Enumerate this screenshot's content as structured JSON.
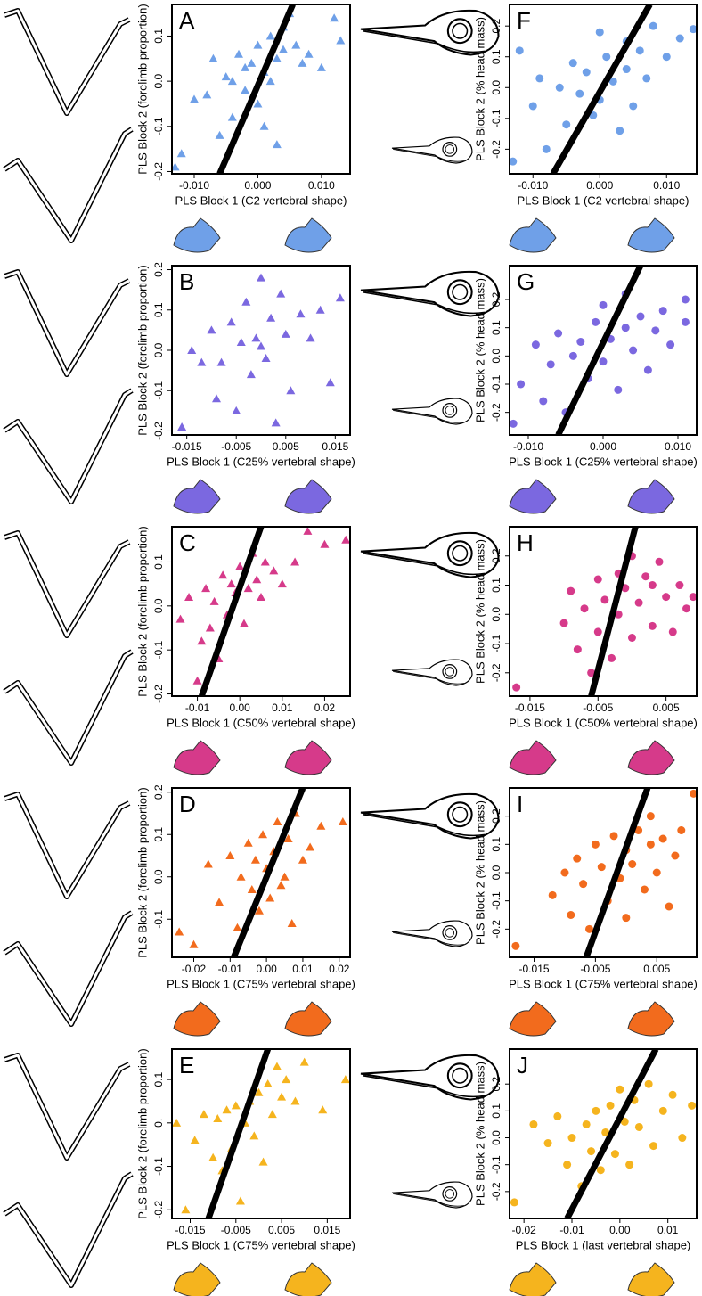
{
  "chart_data": [
    {
      "type": "scatter",
      "panel": "A",
      "marker": "triangle",
      "color": "#6fa0e8",
      "xlabel": "PLS Block 1 (C2 vertebral shape)",
      "ylabel": "PLS Block 2 (forelimb proportion)",
      "xlim": [
        -0.0135,
        0.0145
      ],
      "ylim": [
        -0.205,
        0.17
      ],
      "xticks": [
        {
          "value": -0.01,
          "label": "-0.010"
        },
        {
          "value": 0,
          "label": "0.000"
        },
        {
          "value": 0.01,
          "label": "0.010"
        }
      ],
      "yticks": [
        -0.2,
        -0.1,
        {
          "value": 0,
          "label": "0.0"
        },
        0.1
      ],
      "fit_line": {
        "x": [
          -0.006,
          0.0055
        ],
        "y": [
          -0.205,
          0.17
        ]
      },
      "x": [
        -0.012,
        -0.01,
        -0.008,
        -0.007,
        -0.006,
        -0.005,
        -0.004,
        -0.004,
        -0.003,
        -0.002,
        -0.002,
        -0.001,
        0.0,
        0.0,
        0.001,
        0.001,
        0.002,
        0.002,
        0.003,
        0.003,
        0.004,
        0.004,
        0.005,
        0.006,
        0.007,
        0.008,
        0.01,
        0.012,
        0.013,
        -0.013
      ],
      "y": [
        -0.16,
        -0.04,
        -0.03,
        0.05,
        -0.12,
        0.01,
        0.0,
        -0.08,
        0.06,
        -0.02,
        0.03,
        0.04,
        -0.05,
        0.08,
        0.02,
        -0.1,
        0.1,
        0.0,
        0.05,
        -0.14,
        0.12,
        0.07,
        0.15,
        0.08,
        0.04,
        0.06,
        0.03,
        0.14,
        0.09,
        -0.19
      ]
    },
    {
      "type": "scatter",
      "panel": "B",
      "marker": "triangle",
      "color": "#7b68e0",
      "xlabel": "PLS Block 1 (C25% vertebral shape)",
      "ylabel": "PLS Block 2 (forelimb proportion)",
      "xlim": [
        -0.018,
        0.018
      ],
      "ylim": [
        -0.21,
        0.21
      ],
      "xticks": [
        -0.015,
        -0.005,
        0.005,
        0.015
      ],
      "yticks": [
        -0.2,
        -0.1,
        {
          "value": 0,
          "label": "0.0"
        },
        0.1,
        0.2
      ],
      "x": [
        -0.016,
        -0.014,
        -0.012,
        -0.01,
        -0.009,
        -0.008,
        -0.006,
        -0.005,
        -0.004,
        -0.003,
        -0.002,
        -0.001,
        0.0,
        0.0,
        0.001,
        0.002,
        0.003,
        0.004,
        0.005,
        0.006,
        0.008,
        0.01,
        0.012,
        0.014,
        0.016
      ],
      "y": [
        -0.19,
        0.0,
        -0.03,
        0.05,
        -0.12,
        -0.03,
        0.07,
        -0.15,
        0.02,
        0.12,
        -0.06,
        0.03,
        0.01,
        0.18,
        -0.02,
        0.08,
        -0.18,
        0.14,
        0.04,
        -0.1,
        0.09,
        0.03,
        0.1,
        -0.08,
        0.13
      ]
    },
    {
      "type": "scatter",
      "panel": "C",
      "marker": "triangle",
      "color": "#d63a8a",
      "xlabel": "PLS Block 1 (C50% vertebral shape)",
      "ylabel": "PLS Block 2 (forelimb proportion)",
      "xlim": [
        -0.016,
        0.026
      ],
      "ylim": [
        -0.205,
        0.18
      ],
      "xticks": [
        -0.01,
        {
          "value": 0,
          "label": "0.00"
        },
        0.01,
        0.02
      ],
      "yticks": [
        -0.2,
        -0.1,
        {
          "value": 0,
          "label": "0.0"
        },
        0.1
      ],
      "fit_line": {
        "x": [
          -0.009,
          0.005
        ],
        "y": [
          -0.205,
          0.18
        ]
      },
      "x": [
        -0.014,
        -0.012,
        -0.01,
        -0.009,
        -0.008,
        -0.007,
        -0.006,
        -0.005,
        -0.004,
        -0.003,
        -0.002,
        -0.001,
        0.0,
        0.001,
        0.002,
        0.003,
        0.004,
        0.005,
        0.006,
        0.008,
        0.01,
        0.013,
        0.016,
        0.02,
        0.025
      ],
      "y": [
        -0.03,
        0.02,
        -0.17,
        -0.08,
        0.04,
        -0.05,
        0.01,
        -0.12,
        0.07,
        -0.02,
        0.05,
        0.03,
        0.09,
        -0.04,
        0.04,
        0.12,
        0.06,
        0.02,
        0.1,
        0.08,
        0.05,
        0.1,
        0.17,
        0.14,
        0.15
      ]
    },
    {
      "type": "scatter",
      "panel": "D",
      "marker": "triangle",
      "color": "#f26b1d",
      "xlabel": "PLS Block 1 (C75% vertebral shape)",
      "ylabel": "PLS Block 2 (forelimb proportion)",
      "xlim": [
        -0.026,
        0.023
      ],
      "ylim": [
        -0.19,
        0.21
      ],
      "xticks": [
        -0.02,
        -0.01,
        {
          "value": 0,
          "label": "0.00"
        },
        0.01,
        0.02
      ],
      "yticks": [
        -0.1,
        {
          "value": 0,
          "label": "0.0"
        },
        0.1,
        0.2
      ],
      "fit_line": {
        "x": [
          -0.009,
          0.01
        ],
        "y": [
          -0.19,
          0.21
        ]
      },
      "x": [
        -0.024,
        -0.02,
        -0.016,
        -0.013,
        -0.01,
        -0.008,
        -0.007,
        -0.005,
        -0.004,
        -0.003,
        -0.002,
        -0.001,
        0.0,
        0.001,
        0.002,
        0.003,
        0.004,
        0.005,
        0.006,
        0.007,
        0.008,
        0.01,
        0.012,
        0.015,
        0.021
      ],
      "y": [
        -0.13,
        -0.16,
        0.03,
        -0.06,
        0.05,
        -0.12,
        0.0,
        0.08,
        -0.03,
        0.04,
        -0.08,
        0.1,
        0.02,
        -0.05,
        0.06,
        0.13,
        -0.02,
        0.0,
        0.09,
        -0.11,
        0.15,
        0.04,
        0.07,
        0.12,
        0.13
      ]
    },
    {
      "type": "scatter",
      "panel": "E",
      "marker": "triangle",
      "color": "#f5b41e",
      "xlabel": "PLS Block 1 (C75% vertebral shape)",
      "ylabel": "PLS Block 2 (forelimb proportion)",
      "xlim": [
        -0.019,
        0.02
      ],
      "ylim": [
        -0.22,
        0.17
      ],
      "xticks": [
        -0.015,
        -0.005,
        0.005,
        0.015
      ],
      "yticks": [
        -0.2,
        -0.1,
        {
          "value": 0,
          "label": "0."
        },
        0.1
      ],
      "fit_line": {
        "x": [
          -0.011,
          0.002
        ],
        "y": [
          -0.22,
          0.17
        ]
      },
      "x": [
        -0.018,
        -0.016,
        -0.014,
        -0.012,
        -0.01,
        -0.009,
        -0.008,
        -0.007,
        -0.006,
        -0.005,
        -0.004,
        -0.003,
        -0.002,
        -0.001,
        0.0,
        0.001,
        0.002,
        0.003,
        0.004,
        0.005,
        0.006,
        0.008,
        0.01,
        0.014,
        0.019
      ],
      "y": [
        0.0,
        -0.2,
        -0.04,
        0.02,
        -0.08,
        0.01,
        -0.11,
        0.03,
        -0.06,
        0.04,
        -0.18,
        0.0,
        0.05,
        -0.03,
        0.07,
        -0.09,
        0.09,
        0.02,
        0.13,
        0.06,
        0.1,
        0.05,
        0.14,
        0.03,
        0.1
      ]
    },
    {
      "type": "scatter",
      "panel": "F",
      "marker": "circle",
      "color": "#6fa0e8",
      "xlabel": "PLS Block 1 (C2 vertebral shape)",
      "ylabel": "PLS Block 2 (% head mass)",
      "xlim": [
        -0.0135,
        0.0145
      ],
      "ylim": [
        -0.28,
        0.27
      ],
      "xticks": [
        {
          "value": -0.01,
          "label": "-0.010"
        },
        {
          "value": 0,
          "label": "0.000"
        },
        {
          "value": 0.01,
          "label": "0.010"
        }
      ],
      "yticks": [
        -0.2,
        -0.1,
        {
          "value": 0,
          "label": "0.0"
        },
        0.1,
        0.2
      ],
      "fit_line": {
        "x": [
          -0.007,
          0.0075
        ],
        "y": [
          -0.28,
          0.27
        ]
      },
      "x": [
        -0.013,
        -0.012,
        -0.01,
        -0.009,
        -0.008,
        -0.006,
        -0.005,
        -0.004,
        -0.003,
        -0.002,
        -0.001,
        0.0,
        0.0,
        0.001,
        0.002,
        0.003,
        0.004,
        0.004,
        0.005,
        0.006,
        0.007,
        0.008,
        0.01,
        0.012,
        0.014
      ],
      "y": [
        -0.24,
        0.12,
        -0.06,
        0.03,
        -0.2,
        0.0,
        -0.12,
        0.08,
        -0.02,
        0.05,
        -0.09,
        0.18,
        -0.04,
        0.1,
        0.02,
        -0.14,
        0.15,
        0.06,
        -0.06,
        0.12,
        0.03,
        0.2,
        0.1,
        0.16,
        0.19
      ]
    },
    {
      "type": "scatter",
      "panel": "G",
      "marker": "circle",
      "color": "#7b68e0",
      "xlabel": "PLS Block 1 (C25% vertebral shape)",
      "ylabel": "PLS Block 2 (% head mass)",
      "xlim": [
        -0.0125,
        0.0125
      ],
      "ylim": [
        -0.28,
        0.32
      ],
      "xticks": [
        {
          "value": -0.01,
          "label": "-0.010"
        },
        {
          "value": 0,
          "label": "0.000"
        },
        {
          "value": 0.01,
          "label": "0.010"
        }
      ],
      "yticks": [
        -0.2,
        -0.1,
        {
          "value": 0,
          "label": "0.0"
        },
        0.1,
        0.2
      ],
      "fit_line": {
        "x": [
          -0.006,
          0.005
        ],
        "y": [
          -0.28,
          0.32
        ]
      },
      "x": [
        -0.012,
        -0.011,
        -0.009,
        -0.008,
        -0.007,
        -0.006,
        -0.005,
        -0.004,
        -0.003,
        -0.002,
        -0.001,
        0.0,
        0.0,
        0.001,
        0.002,
        0.003,
        0.003,
        0.004,
        0.005,
        0.006,
        0.007,
        0.008,
        0.009,
        0.011,
        0.011
      ],
      "y": [
        -0.24,
        -0.1,
        0.04,
        -0.16,
        -0.03,
        0.08,
        -0.2,
        0.0,
        0.05,
        -0.08,
        0.12,
        -0.02,
        0.18,
        0.06,
        -0.12,
        0.1,
        0.22,
        0.02,
        0.14,
        -0.05,
        0.09,
        0.16,
        0.04,
        0.2,
        0.12
      ]
    },
    {
      "type": "scatter",
      "panel": "H",
      "marker": "circle",
      "color": "#d63a8a",
      "xlabel": "PLS Block 1 (C50% vertebral shape)",
      "ylabel": "PLS Block 2 (% head mass)",
      "xlim": [
        -0.018,
        0.0095
      ],
      "ylim": [
        -0.28,
        0.3
      ],
      "xticks": [
        -0.015,
        -0.005,
        0.005
      ],
      "yticks": [
        -0.2,
        -0.1,
        {
          "value": 0,
          "label": "0.0"
        },
        0.1,
        0.2
      ],
      "fit_line": {
        "x": [
          -0.006,
          0.0005
        ],
        "y": [
          -0.28,
          0.3
        ]
      },
      "x": [
        -0.017,
        -0.01,
        -0.009,
        -0.008,
        -0.007,
        -0.006,
        -0.005,
        -0.005,
        -0.004,
        -0.003,
        -0.002,
        -0.002,
        -0.001,
        0.0,
        0.0,
        0.001,
        0.002,
        0.003,
        0.003,
        0.004,
        0.005,
        0.006,
        0.007,
        0.008,
        0.009
      ],
      "y": [
        -0.25,
        -0.03,
        0.08,
        -0.12,
        0.02,
        -0.2,
        0.12,
        -0.06,
        0.05,
        -0.15,
        0.14,
        0.0,
        0.09,
        -0.08,
        0.2,
        0.04,
        0.13,
        -0.04,
        0.1,
        0.18,
        0.06,
        -0.06,
        0.1,
        0.02,
        0.06
      ]
    },
    {
      "type": "scatter",
      "panel": "I",
      "marker": "circle",
      "color": "#f26b1d",
      "xlabel": "PLS Block 1 (C75% vertebral shape)",
      "ylabel": "PLS Block 2 (% head mass)",
      "xlim": [
        -0.019,
        0.0115
      ],
      "ylim": [
        -0.3,
        0.3
      ],
      "xticks": [
        -0.015,
        -0.005,
        0.005
      ],
      "yticks": [
        -0.2,
        -0.1,
        {
          "value": 0,
          "label": "0.0"
        },
        0.1,
        0.2
      ],
      "fit_line": {
        "x": [
          -0.0065,
          0.0035
        ],
        "y": [
          -0.3,
          0.3
        ]
      },
      "x": [
        -0.018,
        -0.012,
        -0.01,
        -0.009,
        -0.008,
        -0.007,
        -0.006,
        -0.005,
        -0.004,
        -0.003,
        -0.002,
        -0.001,
        0.0,
        0.0,
        0.001,
        0.002,
        0.003,
        0.004,
        0.004,
        0.005,
        0.006,
        0.007,
        0.008,
        0.009,
        0.011
      ],
      "y": [
        -0.26,
        -0.08,
        0.0,
        -0.15,
        0.05,
        -0.04,
        -0.2,
        0.1,
        0.02,
        -0.1,
        0.13,
        -0.02,
        0.08,
        -0.16,
        0.03,
        0.15,
        -0.06,
        0.1,
        0.2,
        0.0,
        0.12,
        -0.12,
        0.06,
        0.15,
        0.28
      ]
    },
    {
      "type": "scatter",
      "panel": "J",
      "marker": "circle",
      "color": "#f5b41e",
      "xlabel": "PLS Block 1 (last vertebral shape)",
      "ylabel": "PLS Block 2 (% head mass)",
      "xlim": [
        -0.023,
        0.016
      ],
      "ylim": [
        -0.3,
        0.33
      ],
      "xticks": [
        -0.02,
        -0.01,
        {
          "value": 0,
          "label": "0.00"
        },
        0.01
      ],
      "yticks": [
        -0.2,
        -0.1,
        {
          "value": 0,
          "label": "0.0"
        },
        0.1,
        0.2
      ],
      "fit_line": {
        "x": [
          -0.011,
          0.0075
        ],
        "y": [
          -0.3,
          0.33
        ]
      },
      "x": [
        -0.022,
        -0.018,
        -0.015,
        -0.013,
        -0.011,
        -0.01,
        -0.008,
        -0.007,
        -0.006,
        -0.005,
        -0.004,
        -0.003,
        -0.002,
        -0.001,
        0.0,
        0.001,
        0.002,
        0.003,
        0.004,
        0.006,
        0.007,
        0.009,
        0.011,
        0.013,
        0.015
      ],
      "y": [
        -0.24,
        0.05,
        -0.02,
        0.08,
        -0.1,
        0.0,
        -0.18,
        0.05,
        -0.05,
        0.1,
        -0.12,
        0.02,
        0.12,
        -0.06,
        0.18,
        0.06,
        -0.1,
        0.14,
        0.04,
        0.2,
        -0.03,
        0.1,
        0.16,
        0.0,
        0.12
      ]
    }
  ]
}
